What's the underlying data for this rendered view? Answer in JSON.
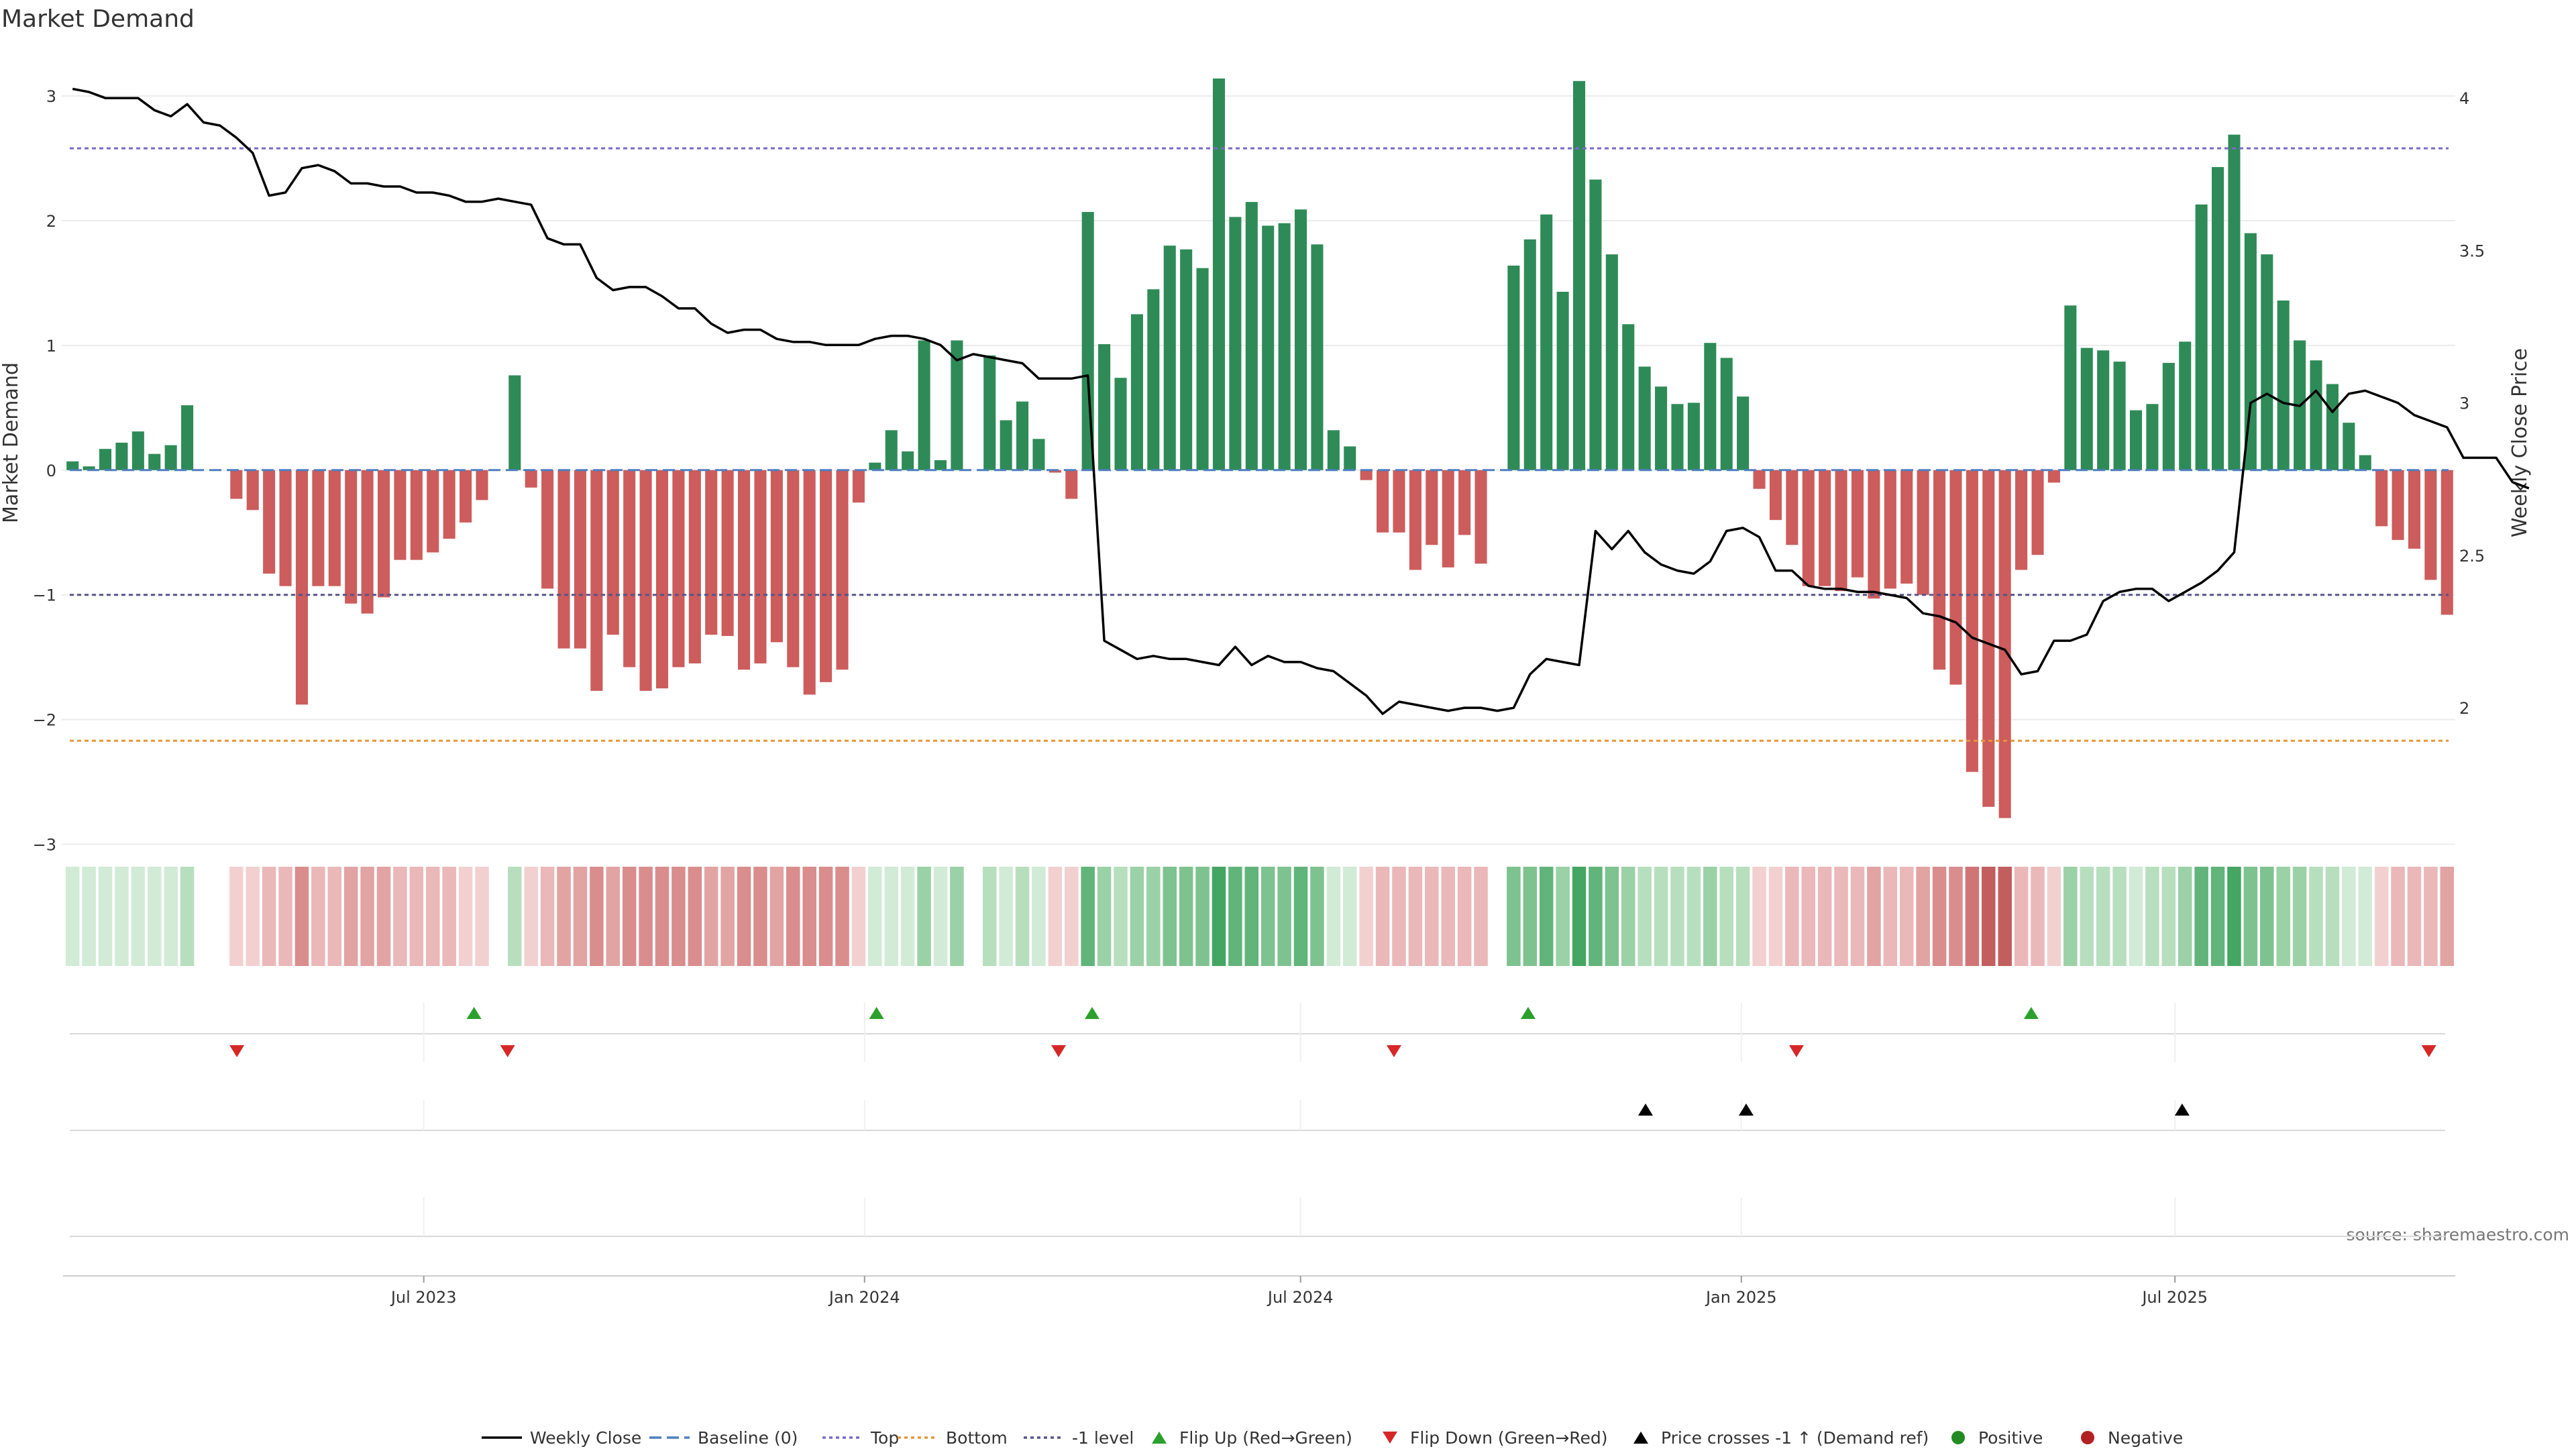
{
  "chart_data": {
    "type": "bar",
    "title": "Market Demand",
    "ylabel": "Market Demand",
    "y2label": "Weekly Close Price",
    "ylim": [
      -3.25,
      3.35
    ],
    "y2lim": [
      1.45,
      4.15
    ],
    "yticks": [
      "−3",
      "−2",
      "−1",
      "0",
      "1",
      "2",
      "3"
    ],
    "y2ticks": [
      "2",
      "2.5",
      "3",
      "3.5",
      "4"
    ],
    "date_ticks": [
      "Jul 2023",
      "Jan 2024",
      "Jul 2024",
      "Jan 2025",
      "Jul 2025"
    ],
    "reference_lines": {
      "top": 2.58,
      "bottom": -2.17,
      "minus_one": -1
    },
    "series": [
      {
        "name": "Market Demand",
        "values": [
          0.07,
          0.03,
          0.17,
          0.22,
          0.31,
          0.13,
          0.2,
          0.52,
          0,
          0,
          -0.23,
          -0.32,
          -0.83,
          -0.93,
          -1.88,
          -0.93,
          -0.93,
          -1.07,
          -1.15,
          -1.02,
          -0.72,
          -0.72,
          -0.66,
          -0.55,
          -0.42,
          -0.24,
          0,
          0.76,
          -0.14,
          -0.95,
          -1.43,
          -1.43,
          -1.77,
          -1.32,
          -1.58,
          -1.77,
          -1.75,
          -1.58,
          -1.55,
          -1.32,
          -1.33,
          -1.6,
          -1.55,
          -1.38,
          -1.58,
          -1.8,
          -1.7,
          -1.6,
          -0.26,
          0.06,
          0.32,
          0.15,
          1.04,
          0.08,
          1.04,
          0,
          0.92,
          0.4,
          0.55,
          0.25,
          -0.02,
          -0.23,
          2.07,
          1.01,
          0.74,
          1.25,
          1.45,
          1.8,
          1.77,
          1.62,
          3.14,
          2.03,
          2.15,
          1.96,
          1.98,
          2.09,
          1.81,
          0.32,
          0.19,
          -0.08,
          -0.5,
          -0.5,
          -0.8,
          -0.6,
          -0.78,
          -0.52,
          -0.75,
          0,
          1.64,
          1.85,
          2.05,
          1.43,
          3.12,
          2.33,
          1.73,
          1.17,
          0.83,
          0.67,
          0.53,
          0.54,
          1.02,
          0.9,
          0.59,
          -0.15,
          -0.4,
          -0.6,
          -0.93,
          -0.93,
          -0.97,
          -0.86,
          -1.03,
          -0.95,
          -0.91,
          -1.0,
          -1.6,
          -1.72,
          -2.42,
          -2.7,
          -2.79,
          -0.8,
          -0.68,
          -0.1,
          1.32,
          0.98,
          0.96,
          0.87,
          0.48,
          0.53,
          0.86,
          1.03,
          2.13,
          2.43,
          2.69,
          1.9,
          1.73,
          1.36,
          1.04,
          0.88,
          0.69,
          0.38,
          0.12,
          -0.45,
          -0.56,
          -0.63,
          -0.88,
          -1.16
        ]
      },
      {
        "name": "Weekly Close",
        "values": [
          4.03,
          4.02,
          4.0,
          4.0,
          4.0,
          3.96,
          3.94,
          3.98,
          3.92,
          3.91,
          3.87,
          3.82,
          3.68,
          3.69,
          3.77,
          3.78,
          3.76,
          3.72,
          3.72,
          3.71,
          3.71,
          3.69,
          3.69,
          3.68,
          3.66,
          3.66,
          3.67,
          3.66,
          3.65,
          3.54,
          3.52,
          3.52,
          3.41,
          3.37,
          3.38,
          3.38,
          3.35,
          3.31,
          3.31,
          3.26,
          3.23,
          3.24,
          3.24,
          3.21,
          3.2,
          3.2,
          3.19,
          3.19,
          3.19,
          3.21,
          3.22,
          3.22,
          3.21,
          3.19,
          3.14,
          3.16,
          3.15,
          3.14,
          3.13,
          3.08,
          3.08,
          3.08,
          3.09,
          2.22,
          2.19,
          2.16,
          2.17,
          2.16,
          2.16,
          2.15,
          2.14,
          2.2,
          2.14,
          2.17,
          2.15,
          2.15,
          2.13,
          2.12,
          2.08,
          2.04,
          1.98,
          2.02,
          2.01,
          2.0,
          1.99,
          2.0,
          2.0,
          1.99,
          2.0,
          2.11,
          2.16,
          2.15,
          2.14,
          2.58,
          2.52,
          2.58,
          2.51,
          2.47,
          2.45,
          2.44,
          2.48,
          2.58,
          2.59,
          2.56,
          2.45,
          2.45,
          2.4,
          2.39,
          2.39,
          2.38,
          2.38,
          2.37,
          2.36,
          2.31,
          2.3,
          2.28,
          2.23,
          2.21,
          2.19,
          2.11,
          2.12,
          2.22,
          2.22,
          2.24,
          2.35,
          2.38,
          2.39,
          2.39,
          2.35,
          2.38,
          2.41,
          2.45,
          2.51,
          3.0,
          3.03,
          3.0,
          2.99,
          3.04,
          2.97,
          3.03,
          3.04,
          3.02,
          3.0,
          2.96,
          2.94,
          2.92,
          2.82,
          2.82,
          2.82,
          2.74,
          2.72
        ]
      }
    ],
    "heat_colors": {
      "greens": [
        "#d1ebd6",
        "#b7dfbe",
        "#9bd1a6",
        "#7ec290",
        "#61b47a",
        "#44a662"
      ],
      "reds": [
        "#f2d0d0",
        "#eab8b8",
        "#e2a3a3",
        "#d98d8d",
        "#cf7575",
        "#c35e5e"
      ]
    },
    "strip_markers": {
      "flip_up": [
        "2023-07-22",
        "2024-01-06",
        "2024-04-05",
        "2024-10-04",
        "2025-05-02"
      ],
      "flip_down": [
        "2023-04-14",
        "2023-08-05",
        "2024-03-22",
        "2024-08-09",
        "2025-01-24",
        "2025-10-15"
      ],
      "price_cross": [
        "2024-11-22",
        "2025-01-03",
        "2025-07-04"
      ]
    },
    "colors": {
      "positive_bar": "#2e8b57",
      "negative_bar": "#cd5c5c",
      "close_line": "#000000",
      "top_line": "#7b68c8",
      "bottom_line": "#e69538",
      "minus_one_line": "#555588",
      "baseline": "#4f7fc0",
      "flip_up": "#2ca02c",
      "flip_down": "#d62728",
      "price_cross": "#000000",
      "positive_dot": "#228b22",
      "negative_dot": "#b22222"
    },
    "legend": [
      {
        "label": "Weekly Close",
        "symbol": "line-solid",
        "color": "#000000"
      },
      {
        "label": "Baseline (0)",
        "symbol": "line-dashed",
        "color": "#4f7fc0"
      },
      {
        "label": "Top",
        "symbol": "line-dotted",
        "color": "#7b68c8"
      },
      {
        "label": "Bottom",
        "symbol": "line-dotted",
        "color": "#e69538"
      },
      {
        "label": "-1 level",
        "symbol": "line-dotted",
        "color": "#555588"
      },
      {
        "label": "Flip Up (Red→Green)",
        "symbol": "triangle-up",
        "color": "#2ca02c"
      },
      {
        "label": "Flip Down (Green→Red)",
        "symbol": "triangle-down",
        "color": "#d62728"
      },
      {
        "label": "Price crosses -1 ↑ (Demand ref)",
        "symbol": "triangle-up",
        "color": "#000000"
      },
      {
        "label": "Positive",
        "symbol": "dot",
        "color": "#228b22"
      },
      {
        "label": "Negative",
        "symbol": "dot",
        "color": "#b22222"
      }
    ],
    "source": "source: sharemaestro.com"
  }
}
